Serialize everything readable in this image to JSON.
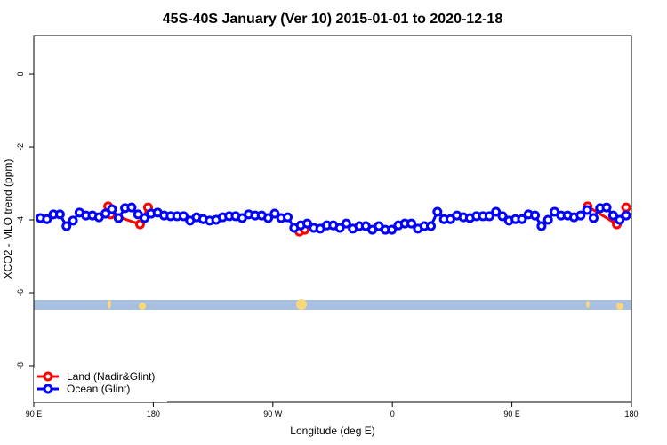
{
  "chart_data": {
    "type": "line",
    "title": "45S-40S January (Ver 10)   2015-01-01 to 2020-12-18",
    "x_label": "Longitude (deg E)",
    "y_label": "XCO2 - MLO trend (ppm)",
    "xlim": [
      90,
      540
    ],
    "ylim": [
      -9,
      1.05
    ],
    "xticks": [
      {
        "value": 90,
        "label": "90 E"
      },
      180,
      {
        "value": 270,
        "label": "90 W"
      },
      {
        "value": 360,
        "label": "0"
      },
      {
        "value": 450,
        "label": "90 E"
      },
      {
        "value": 540,
        "label": "180"
      }
    ],
    "yticks": [
      0,
      -2,
      -4,
      -6,
      -8
    ],
    "legend": "bottom-left",
    "series": [
      {
        "name": "Land (Nadir&Glint)",
        "color": "#ff0000",
        "x": [
          146,
          148,
          170,
          176,
          283,
          290,
          294,
          500,
          507,
          529,
          536
        ],
        "values": [
          -3.63,
          -3.85,
          -4.12,
          -3.66,
          null,
          -4.32,
          -4.27,
          null,
          -3.63,
          -4.12,
          -3.66
        ]
      },
      {
        "name": "Ocean (Glint)",
        "color": "#0000ff",
        "x": [
          95,
          99.9,
          104.8,
          109.7,
          114.6,
          119.5,
          124.4,
          129.3,
          134.2,
          139.1,
          144,
          148.9,
          153.8,
          158.7,
          163.6,
          168.5,
          173.4,
          178.3,
          183.2,
          188.1,
          193,
          197.9,
          202.8,
          207.7,
          212.6,
          217.5,
          222.4,
          227.3,
          232.2,
          237.1,
          242,
          246.9,
          251.8,
          256.7,
          261.6,
          266.5,
          271.4,
          276.3,
          281.2,
          286.1,
          291,
          295.9,
          300.8,
          305.7,
          310.6,
          315.5,
          320.4,
          325.3,
          330.2,
          335.1,
          340,
          344.9,
          349.8,
          354.7,
          359.6,
          364.5,
          369.4,
          374.3,
          379.2,
          384.1,
          389,
          393.9,
          398.8,
          403.7,
          408.6,
          413.5,
          418.4,
          423.3,
          428.2,
          433.1,
          438,
          442.9,
          447.8,
          452.7,
          457.6,
          462.5,
          467.4,
          472.3,
          477.2,
          482.1,
          487,
          491.9,
          496.8,
          501.7,
          506.6,
          511.5,
          516.4,
          521.3,
          526.2,
          531.1,
          536
        ],
        "values": [
          -3.95,
          -3.98,
          -3.85,
          -3.85,
          -4.17,
          -4.02,
          -3.8,
          -3.88,
          -3.88,
          -3.93,
          -3.83,
          -3.71,
          -3.95,
          -3.68,
          -3.66,
          -3.85,
          -3.95,
          -3.83,
          -3.8,
          -3.88,
          -3.9,
          -3.9,
          -3.9,
          -4.02,
          -3.93,
          -3.98,
          -4.02,
          -4.0,
          -3.93,
          -3.9,
          -3.9,
          -3.95,
          -3.85,
          -3.88,
          -3.88,
          -3.95,
          -3.83,
          -3.95,
          -3.93,
          -4.22,
          -4.15,
          -4.1,
          -4.22,
          -4.24,
          -4.15,
          -4.15,
          -4.22,
          -4.1,
          -4.24,
          -4.17,
          -4.17,
          -4.27,
          -4.17,
          -4.27,
          -4.27,
          -4.15,
          -4.1,
          -4.1,
          -4.24,
          -4.17,
          -4.17,
          -3.78,
          -3.98,
          -3.98,
          -3.88,
          -3.93,
          -3.95,
          -3.9,
          -3.9,
          -3.9,
          -3.78,
          -3.9,
          -4.02,
          -3.98,
          -3.98,
          -3.85,
          -3.88,
          -4.17,
          -4.0,
          -3.78,
          -3.88,
          -3.88,
          -3.93,
          -3.88,
          -3.73,
          -3.95,
          -3.68,
          -3.66,
          -3.88,
          -4.0,
          -3.88
        ]
      }
    ]
  }
}
